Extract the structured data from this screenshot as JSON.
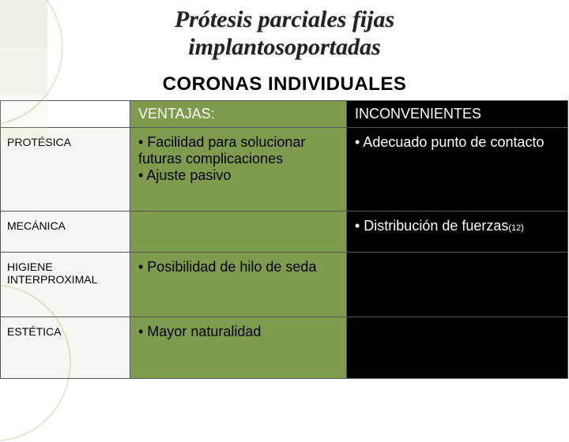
{
  "title_line1": "Prótesis parciales fijas",
  "title_line2": "implantosoportadas",
  "subtitle": "CORONAS INDIVIDUALES",
  "colors": {
    "advantage_bg": "#7f9b4e",
    "disadvantage_bg": "#000000",
    "rowheader_bg": "#f6f7f0",
    "border": "#555555",
    "text_light": "#ffffff",
    "text_dark": "#000000"
  },
  "columns": {
    "advantages_label": "VENTAJAS:",
    "disadvantages_label": "INCONVENIENTES"
  },
  "rows": {
    "protesica": {
      "label": "PROTÉSICA",
      "adv_b1": "• Facilidad para solucionar futuras complicaciones",
      "adv_b2": "• Ajuste pasivo",
      "dis_b1": "• Adecuado punto de contacto"
    },
    "mecanica": {
      "label": "MECÁNICA",
      "dis_b1_pre": "• Distribución de fuerzas",
      "dis_b1_ref": "(12)"
    },
    "higiene": {
      "label": "HIGIENE INTERPROXIMAL",
      "adv_b1": "• Posibilidad de hilo de seda"
    },
    "estetica": {
      "label": "ESTÉTICA",
      "adv_b1": "• Mayor naturalidad"
    }
  }
}
